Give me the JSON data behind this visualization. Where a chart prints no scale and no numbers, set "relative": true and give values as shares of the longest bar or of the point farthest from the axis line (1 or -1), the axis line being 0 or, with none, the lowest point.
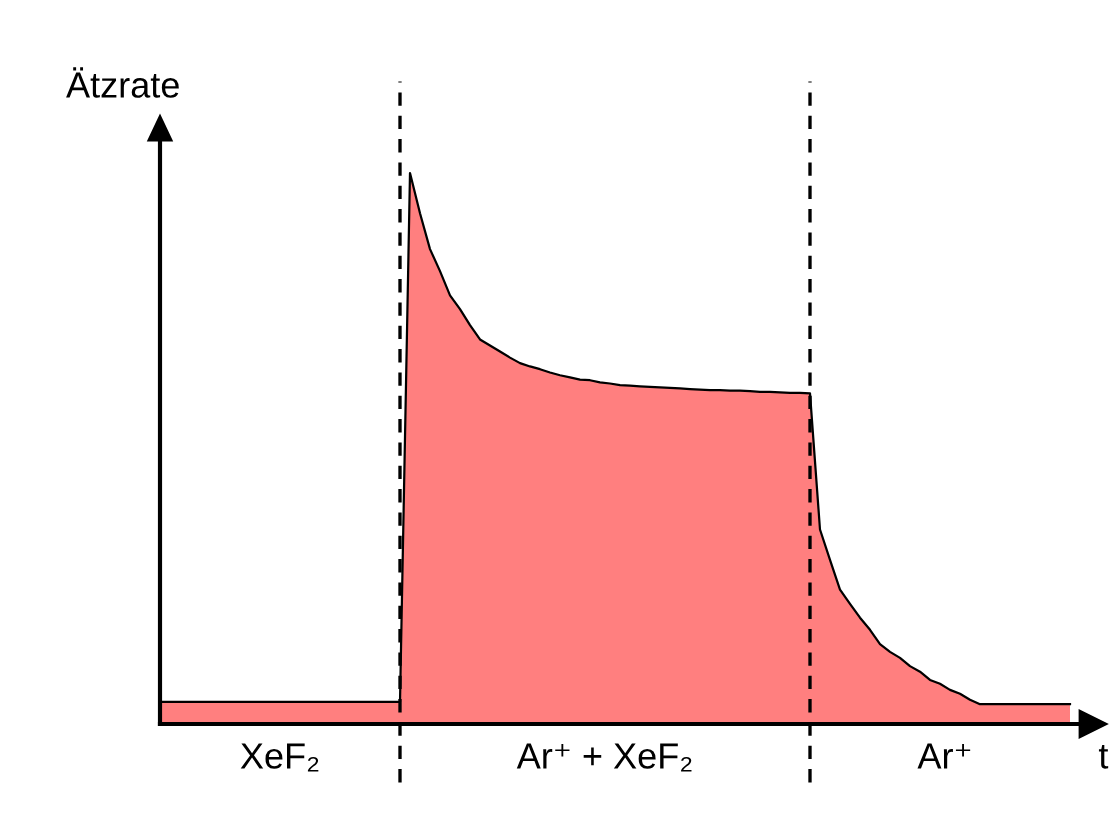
{
  "chart_data": {
    "type": "area",
    "relative": true,
    "ylabel": "Ätzrate",
    "xlabel": "t",
    "categories": [
      null,
      null,
      null,
      null,
      null,
      null,
      null,
      null,
      null,
      null,
      null,
      null,
      null,
      null,
      null,
      null,
      null,
      null,
      null,
      null,
      null,
      null,
      null,
      null,
      null,
      null,
      null,
      null,
      null,
      null,
      null,
      null,
      null,
      null,
      null,
      null,
      null,
      null,
      null,
      null,
      null,
      null,
      null,
      null,
      null,
      null,
      null,
      null,
      null,
      null,
      null,
      null,
      null,
      null,
      null,
      null,
      null,
      null,
      null,
      null,
      null,
      null,
      null,
      null,
      null,
      null,
      null,
      null,
      null,
      null,
      null,
      null,
      null,
      null,
      null,
      null,
      null,
      null,
      null,
      null,
      null,
      null,
      null,
      null,
      null,
      null,
      null,
      null,
      null,
      null,
      null,
      null
    ],
    "series": [
      {
        "color": "#ff7f7f",
        "values": [
          0.04,
          0.04,
          0.04,
          0.04,
          0.04,
          0.04,
          0.04,
          0.04,
          0.04,
          0.04,
          0.04,
          0.04,
          0.04,
          0.04,
          0.04,
          0.04,
          0.04,
          0.04,
          0.04,
          0.04,
          0.04,
          0.04,
          0.04,
          0.04,
          0.04,
          1.0,
          0.927,
          0.862,
          0.822,
          0.778,
          0.753,
          0.724,
          0.698,
          0.687,
          0.676,
          0.665,
          0.655,
          0.649,
          0.644,
          0.638,
          0.633,
          0.629,
          0.625,
          0.624,
          0.62,
          0.618,
          0.615,
          0.614,
          0.613,
          0.612,
          0.611,
          0.61,
          0.609,
          0.608,
          0.607,
          0.606,
          0.606,
          0.605,
          0.605,
          0.604,
          0.603,
          0.603,
          0.602,
          0.601,
          0.601,
          0.6,
          0.353,
          0.298,
          0.244,
          0.218,
          0.193,
          0.171,
          0.145,
          0.131,
          0.12,
          0.105,
          0.095,
          0.08,
          0.073,
          0.062,
          0.055,
          0.044,
          0.036,
          0.036,
          0.036,
          0.036,
          0.036,
          0.036,
          0.036,
          0.036,
          0.036,
          0.036
        ]
      }
    ],
    "annotations": [
      "XeF₂",
      "Ar⁺ + XeF₂",
      "Ar⁺"
    ]
  }
}
